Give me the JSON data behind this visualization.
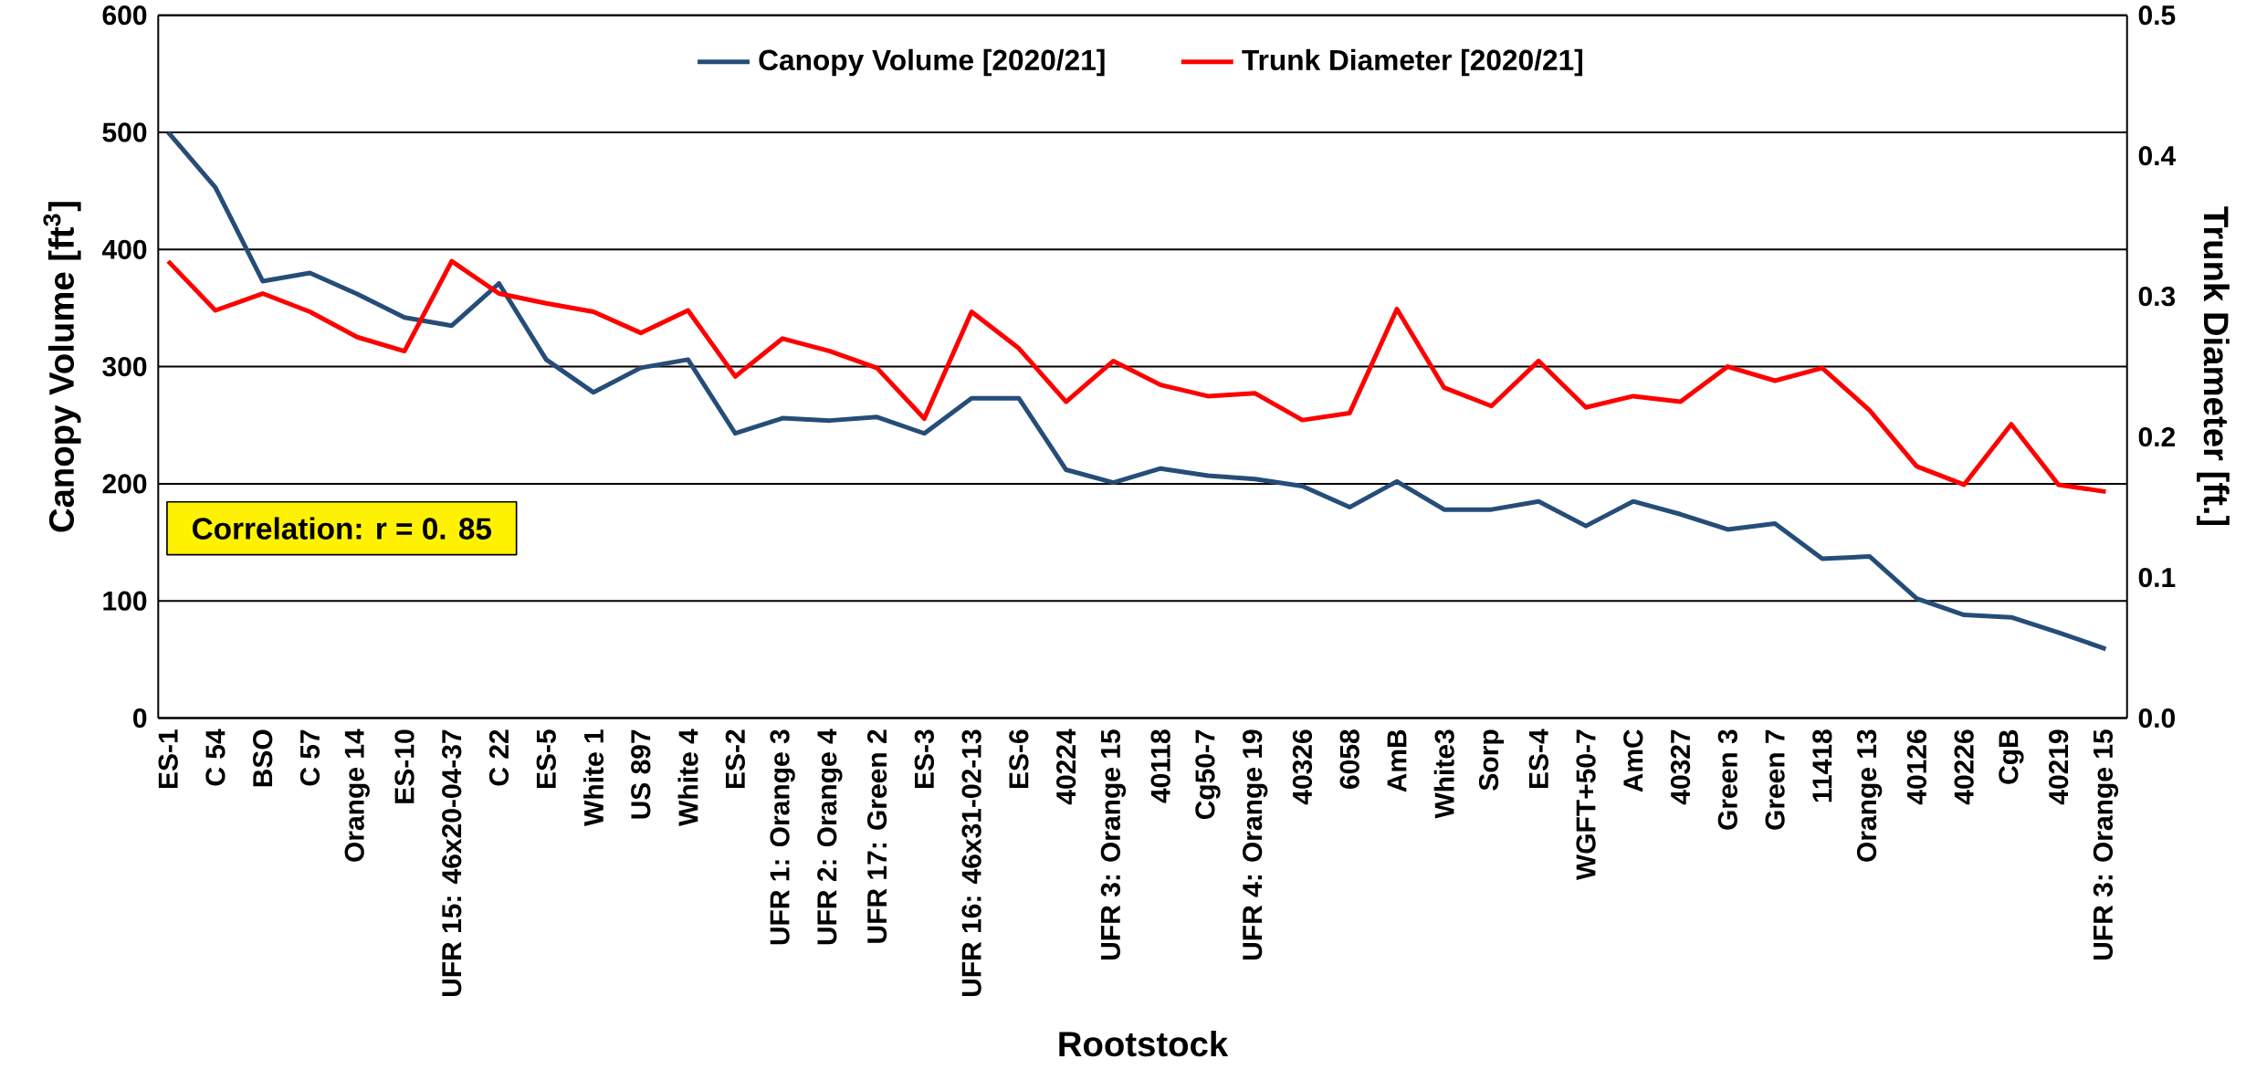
{
  "chart_data": {
    "type": "line",
    "xlabel": "Rootstock",
    "ylabel": "Canopy Volume [ft$^{3}$]",
    "y2label": "Trunk Diameter [ft.]",
    "categories": [
      "ES-1",
      "C 54",
      "BSO",
      "C 57",
      "Orange 14",
      "ES-10",
      "UFR 15: 46x20-04-37",
      "C 22",
      "ES-5",
      "White 1",
      "US 897",
      "White 4",
      "ES-2",
      "UFR 1: Orange 3",
      "UFR 2: Orange 4",
      "UFR 17: Green 2",
      "ES-3",
      "UFR 16: 46x31-02-13",
      "ES-6",
      "40224",
      "UFR 3: Orange 15",
      "40118",
      "Cg50-7",
      "UFR 4: Orange 19",
      "40326",
      "6058",
      "AmB",
      "White3",
      "Sorp",
      "ES-4",
      "WGFT+50-7",
      "AmC",
      "40327",
      "Green 3",
      "Green 7",
      "11418",
      "Orange 13",
      "40126",
      "40226",
      "CgB",
      "40219",
      "UFR 3: Orange 15"
    ],
    "series": [
      {
        "name": "Canopy Volume  [2020/21]",
        "color": "#264d78",
        "values": [
          500,
          453,
          373,
          380,
          362,
          342,
          335,
          371,
          306,
          278,
          299,
          306,
          243,
          256,
          254,
          257,
          243,
          273,
          273,
          212,
          201,
          213,
          207,
          204,
          198,
          180,
          202,
          178,
          178,
          185,
          164,
          185,
          174,
          161,
          166,
          136,
          138,
          102,
          88,
          86,
          73,
          59
        ]
      },
      {
        "name": "Trunk Diameter  [2020/21]",
        "color": "#ff0000",
        "axis": "y2",
        "values": [
          0.325,
          0.29,
          0.302,
          0.289,
          0.271,
          0.261,
          0.325,
          0.302,
          0.295,
          0.289,
          0.274,
          0.29,
          0.243,
          0.27,
          0.261,
          0.249,
          0.213,
          0.289,
          0.263,
          0.225,
          0.254,
          0.237,
          0.229,
          0.231,
          0.212,
          0.217,
          0.291,
          0.235,
          0.222,
          0.254,
          0.221,
          0.229,
          0.225,
          0.25,
          0.24,
          0.249,
          0.219,
          0.179,
          0.166,
          0.209,
          0.166,
          0.161
        ]
      }
    ],
    "ylim": [
      0,
      600
    ],
    "yticks": [
      0,
      100,
      200,
      300,
      400,
      500,
      600
    ],
    "y2lim": [
      0,
      0.5
    ],
    "y2ticks": [
      {
        "value": 0,
        "label": "0.0"
      },
      0.1,
      0.2,
      0.3,
      0.4,
      0.5
    ],
    "grid": "y",
    "legend": "top",
    "marker": "none",
    "line_style": "solid",
    "annotations": [
      "Correlation: r = 0. 85"
    ]
  }
}
